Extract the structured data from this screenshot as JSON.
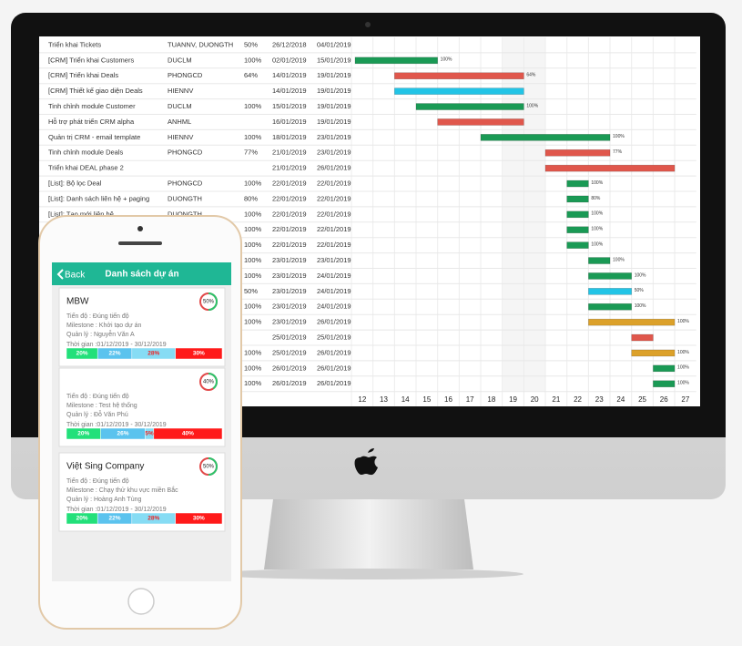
{
  "gantt": {
    "rows": [
      {
        "task": "Triển khai Tickets",
        "owner": "TUANNV, DUONGTH",
        "progress": "50%",
        "start": "26/12/2018",
        "end": "04/01/2019"
      },
      {
        "task": "[CRM] Triển khai Customers",
        "owner": "DUCLM",
        "progress": "100%",
        "start": "02/01/2019",
        "end": "15/01/2019",
        "color": "#1a9a55"
      },
      {
        "task": "[CRM] Triển khai Deals",
        "owner": "PHONGCD",
        "progress": "64%",
        "start": "14/01/2019",
        "end": "19/01/2019",
        "color": "#e0574c"
      },
      {
        "task": "[CRM] Thiết kế giao diện Deals",
        "owner": "HIENNV",
        "start": "14/01/2019",
        "end": "19/01/2019",
        "color": "#22c4e6"
      },
      {
        "task": "Tinh chỉnh module Customer",
        "owner": "DUCLM",
        "progress": "100%",
        "start": "15/01/2019",
        "end": "19/01/2019",
        "color": "#1a9a55"
      },
      {
        "task": "Hỗ trợ phát triển CRM alpha",
        "owner": "ANHML",
        "start": "16/01/2019",
        "end": "19/01/2019",
        "color": "#e0574c"
      },
      {
        "task": "Quản trị CRM - email template",
        "owner": "HIENNV",
        "progress": "100%",
        "start": "18/01/2019",
        "end": "23/01/2019",
        "color": "#1a9a55"
      },
      {
        "task": "Tinh chỉnh module Deals",
        "owner": "PHONGCD",
        "progress": "77%",
        "start": "21/01/2019",
        "end": "23/01/2019",
        "color": "#e0574c"
      },
      {
        "task": "Triển khai DEAL phase 2",
        "start": "21/01/2019",
        "end": "26/01/2019",
        "color": "#e0574c"
      },
      {
        "task": "[List]: Bộ lọc Deal",
        "owner": "PHONGCD",
        "progress": "100%",
        "start": "22/01/2019",
        "end": "22/01/2019",
        "color": "#1a9a55"
      },
      {
        "task": "[List]: Danh sách liên hệ + paging",
        "owner": "DUONGTH",
        "progress": "80%",
        "start": "22/01/2019",
        "end": "22/01/2019",
        "color": "#1a9a55"
      },
      {
        "task": "[List]: Tạo mới liên hệ",
        "owner": "DUONGTH",
        "progress": "100%",
        "start": "22/01/2019",
        "end": "22/01/2019",
        "color": "#1a9a55"
      },
      {
        "progress": "100%",
        "start": "22/01/2019",
        "end": "22/01/2019",
        "color": "#1a9a55"
      },
      {
        "progress": "100%",
        "start": "22/01/2019",
        "end": "22/01/2019",
        "color": "#1a9a55"
      },
      {
        "progress": "100%",
        "start": "23/01/2019",
        "end": "23/01/2019",
        "color": "#1a9a55"
      },
      {
        "progress": "100%",
        "start": "23/01/2019",
        "end": "24/01/2019",
        "color": "#1a9a55"
      },
      {
        "progress": "50%",
        "start": "23/01/2019",
        "end": "24/01/2019",
        "color": "#22c4e6"
      },
      {
        "progress": "100%",
        "start": "23/01/2019",
        "end": "24/01/2019",
        "color": "#1a9a55"
      },
      {
        "progress": "100%",
        "start": "23/01/2019",
        "end": "26/01/2019",
        "color": "#dca12a"
      },
      {
        "start": "25/01/2019",
        "end": "25/01/2019",
        "color": "#e0574c"
      },
      {
        "progress": "100%",
        "start": "25/01/2019",
        "end": "26/01/2019",
        "color": "#dca12a"
      },
      {
        "progress": "100%",
        "start": "26/01/2019",
        "end": "26/01/2019",
        "color": "#1a9a55"
      },
      {
        "progress": "100%",
        "start": "26/01/2019",
        "end": "26/01/2019",
        "color": "#1a9a55"
      }
    ],
    "days": [
      12,
      13,
      14,
      15,
      16,
      17,
      18,
      19,
      20,
      21,
      22,
      23,
      24,
      25,
      26,
      27
    ]
  },
  "phone": {
    "back": "Back",
    "title": "Danh sách dự án",
    "cards": [
      {
        "name": "MBW",
        "percent": "50%",
        "lines": [
          "Tiến độ : Đúng tiến độ",
          "Milestone : Khởi tạo dự án",
          "Quản lý : Nguyễn Văn A",
          "Thời gian :01/12/2019 - 30/12/2019"
        ],
        "segments": [
          {
            "value": 20,
            "label": "20%"
          },
          {
            "value": 22,
            "label": "22%"
          },
          {
            "value": 28,
            "label": "28%"
          },
          {
            "value": 30,
            "label": "30%"
          }
        ]
      },
      {
        "percent": "40%",
        "lines": [
          "Tiến độ : Đúng tiến độ",
          "Milestone : Test hệ thống",
          "Quản lý : Đỗ Văn Phú",
          "Thời gian :01/12/2019 - 30/12/2019"
        ],
        "segments": [
          {
            "value": 20,
            "label": "20%"
          },
          {
            "value": 26,
            "label": "26%"
          },
          {
            "value": 5,
            "label": "5%"
          },
          {
            "value": 40,
            "label": "40%"
          }
        ]
      },
      {
        "name": "Việt Sing Company",
        "percent": "50%",
        "lines": [
          "Tiến độ : Đúng tiến độ",
          "Milestone : Chạy thử khu vực miền Bắc",
          "Quản lý : Hoàng Anh Tùng",
          "Thời gian :01/12/2019 - 30/12/2019"
        ],
        "segments": [
          {
            "value": 20,
            "label": "20%"
          },
          {
            "value": 22,
            "label": "22%"
          },
          {
            "value": 28,
            "label": "28%"
          },
          {
            "value": 30,
            "label": "30%"
          }
        ]
      }
    ]
  }
}
